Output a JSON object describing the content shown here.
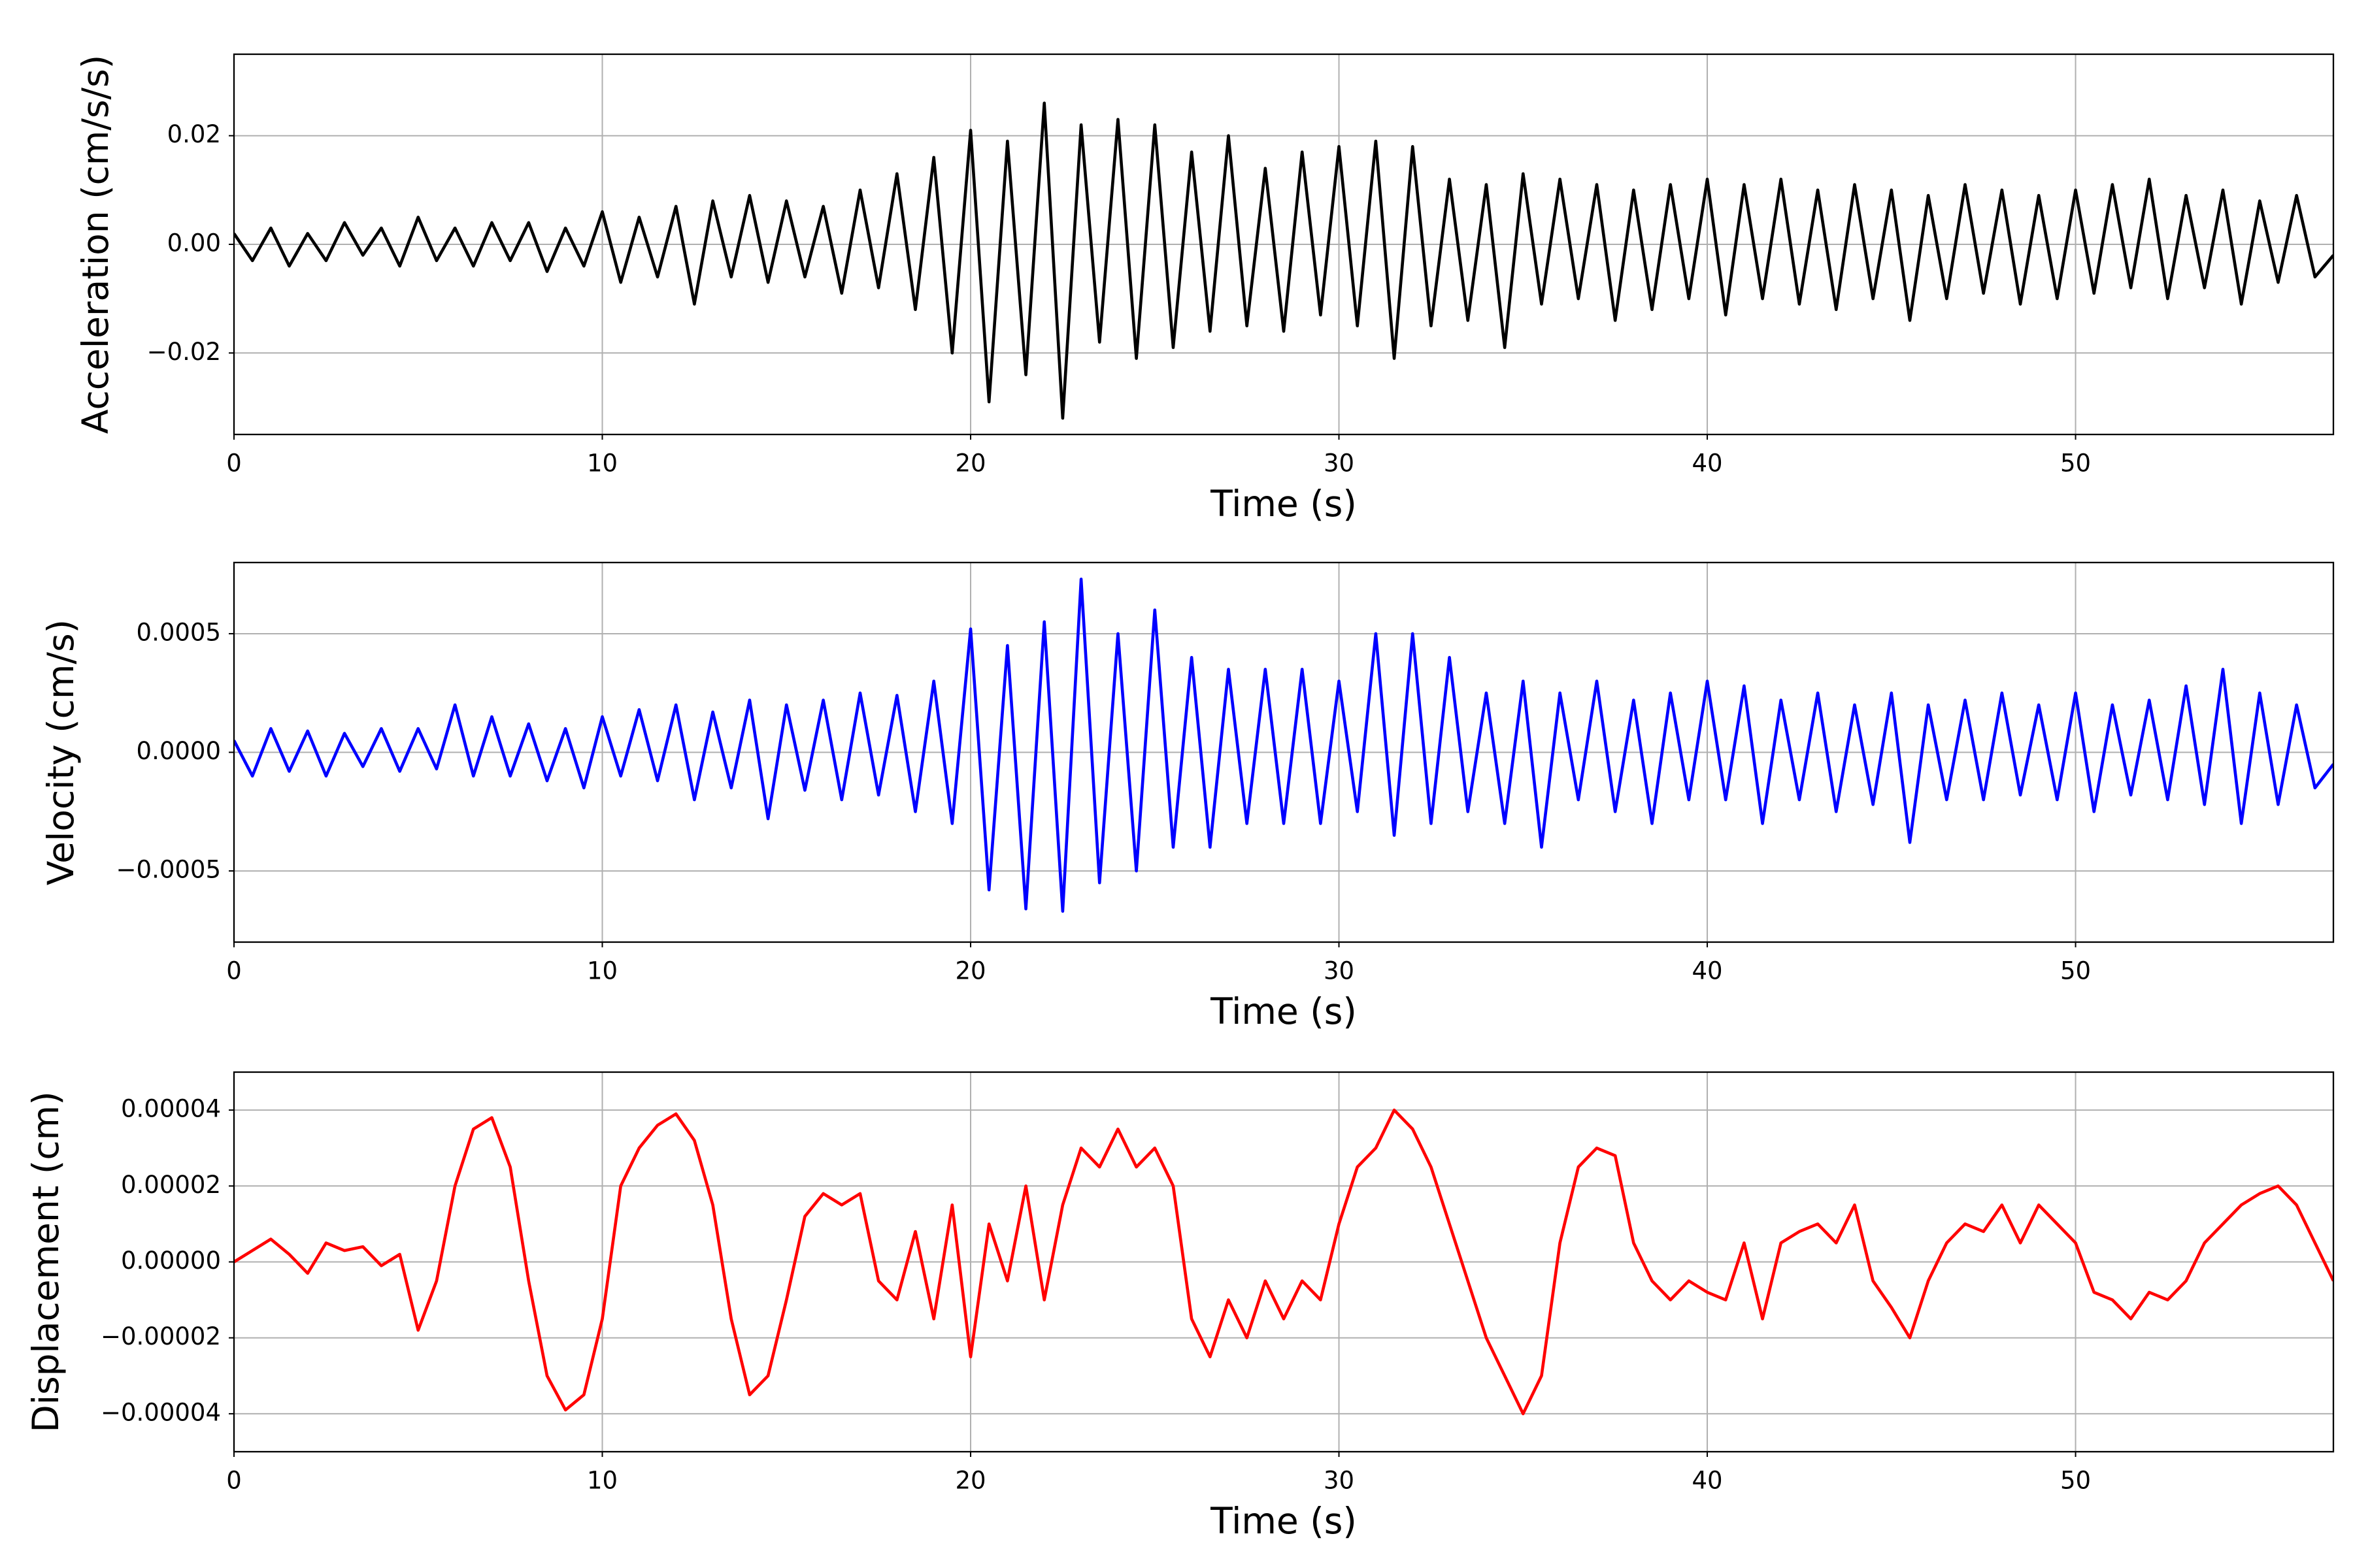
{
  "chart_data": [
    {
      "type": "line",
      "xlabel": "Time (s)",
      "ylabel": "Acceleration (cm/s/s)",
      "color": "#000000",
      "grid": true,
      "xlim": [
        0,
        57
      ],
      "xticks": [
        0,
        10,
        20,
        30,
        40,
        50
      ],
      "ylim": [
        -0.035,
        0.035
      ],
      "yticks": [
        {
          "value": -0.02,
          "label": "−0.02"
        },
        {
          "value": 0,
          "label": "0.00"
        },
        {
          "value": 0.02,
          "label": "0.02"
        }
      ],
      "x": [
        0,
        0.5,
        1,
        1.5,
        2,
        2.5,
        3,
        3.5,
        4,
        4.5,
        5,
        5.5,
        6,
        6.5,
        7,
        7.5,
        8,
        8.5,
        9,
        9.5,
        10,
        10.5,
        11,
        11.5,
        12,
        12.5,
        13,
        13.5,
        14,
        14.5,
        15,
        15.5,
        16,
        16.5,
        17,
        17.5,
        18,
        18.5,
        19,
        19.5,
        20,
        20.5,
        21,
        21.5,
        22,
        22.5,
        23,
        23.5,
        24,
        24.5,
        25,
        25.5,
        26,
        26.5,
        27,
        27.5,
        28,
        28.5,
        29,
        29.5,
        30,
        30.5,
        31,
        31.5,
        32,
        32.5,
        33,
        33.5,
        34,
        34.5,
        35,
        35.5,
        36,
        36.5,
        37,
        37.5,
        38,
        38.5,
        39,
        39.5,
        40,
        40.5,
        41,
        41.5,
        42,
        42.5,
        43,
        43.5,
        44,
        44.5,
        45,
        45.5,
        46,
        46.5,
        47,
        47.5,
        48,
        48.5,
        49,
        49.5,
        50,
        50.5,
        51,
        51.5,
        52,
        52.5,
        53,
        53.5,
        54,
        54.5,
        55,
        55.5,
        56,
        56.5,
        57
      ],
      "values": [
        0.002,
        -0.003,
        0.003,
        -0.004,
        0.002,
        -0.003,
        0.004,
        -0.002,
        0.003,
        -0.004,
        0.005,
        -0.003,
        0.003,
        -0.004,
        0.004,
        -0.003,
        0.004,
        -0.005,
        0.003,
        -0.004,
        0.006,
        -0.007,
        0.005,
        -0.006,
        0.007,
        -0.011,
        0.008,
        -0.006,
        0.009,
        -0.007,
        0.008,
        -0.006,
        0.007,
        -0.009,
        0.01,
        -0.008,
        0.013,
        -0.012,
        0.016,
        -0.02,
        0.021,
        -0.029,
        0.019,
        -0.024,
        0.026,
        -0.032,
        0.022,
        -0.018,
        0.023,
        -0.021,
        0.022,
        -0.019,
        0.017,
        -0.016,
        0.02,
        -0.015,
        0.014,
        -0.016,
        0.017,
        -0.013,
        0.018,
        -0.015,
        0.019,
        -0.021,
        0.018,
        -0.015,
        0.012,
        -0.014,
        0.011,
        -0.019,
        0.013,
        -0.011,
        0.012,
        -0.01,
        0.011,
        -0.014,
        0.01,
        -0.012,
        0.011,
        -0.01,
        0.012,
        -0.013,
        0.011,
        -0.01,
        0.012,
        -0.011,
        0.01,
        -0.012,
        0.011,
        -0.01,
        0.01,
        -0.014,
        0.009,
        -0.01,
        0.011,
        -0.009,
        0.01,
        -0.011,
        0.009,
        -0.01,
        0.01,
        -0.009,
        0.011,
        -0.008,
        0.012,
        -0.01,
        0.009,
        -0.008,
        0.01,
        -0.011,
        0.008,
        -0.007,
        0.009,
        -0.006,
        -0.002
      ]
    },
    {
      "type": "line",
      "xlabel": "Time (s)",
      "ylabel": "Velocity (cm/s)",
      "color": "#0000ff",
      "grid": true,
      "xlim": [
        0,
        57
      ],
      "xticks": [
        0,
        10,
        20,
        30,
        40,
        50
      ],
      "ylim": [
        -0.0008,
        0.0008
      ],
      "yticks": [
        {
          "value": -0.0005,
          "label": "−0.0005"
        },
        {
          "value": 0,
          "label": "0.0000"
        },
        {
          "value": 0.0005,
          "label": "0.0005"
        }
      ],
      "x": [
        0,
        0.5,
        1,
        1.5,
        2,
        2.5,
        3,
        3.5,
        4,
        4.5,
        5,
        5.5,
        6,
        6.5,
        7,
        7.5,
        8,
        8.5,
        9,
        9.5,
        10,
        10.5,
        11,
        11.5,
        12,
        12.5,
        13,
        13.5,
        14,
        14.5,
        15,
        15.5,
        16,
        16.5,
        17,
        17.5,
        18,
        18.5,
        19,
        19.5,
        20,
        20.5,
        21,
        21.5,
        22,
        22.5,
        23,
        23.5,
        24,
        24.5,
        25,
        25.5,
        26,
        26.5,
        27,
        27.5,
        28,
        28.5,
        29,
        29.5,
        30,
        30.5,
        31,
        31.5,
        32,
        32.5,
        33,
        33.5,
        34,
        34.5,
        35,
        35.5,
        36,
        36.5,
        37,
        37.5,
        38,
        38.5,
        39,
        39.5,
        40,
        40.5,
        41,
        41.5,
        42,
        42.5,
        43,
        43.5,
        44,
        44.5,
        45,
        45.5,
        46,
        46.5,
        47,
        47.5,
        48,
        48.5,
        49,
        49.5,
        50,
        50.5,
        51,
        51.5,
        52,
        52.5,
        53,
        53.5,
        54,
        54.5,
        55,
        55.5,
        56,
        56.5,
        57
      ],
      "values": [
        5e-05,
        -0.0001,
        0.0001,
        -8e-05,
        9e-05,
        -0.0001,
        8e-05,
        -6e-05,
        0.0001,
        -8e-05,
        0.0001,
        -7e-05,
        0.0002,
        -0.0001,
        0.00015,
        -0.0001,
        0.00012,
        -0.00012,
        0.0001,
        -0.00015,
        0.00015,
        -0.0001,
        0.00018,
        -0.00012,
        0.0002,
        -0.0002,
        0.00017,
        -0.00015,
        0.00022,
        -0.00028,
        0.0002,
        -0.00016,
        0.00022,
        -0.0002,
        0.00025,
        -0.00018,
        0.00024,
        -0.00025,
        0.0003,
        -0.0003,
        0.00052,
        -0.00058,
        0.00045,
        -0.00066,
        0.00055,
        -0.00067,
        0.00073,
        -0.00055,
        0.0005,
        -0.0005,
        0.0006,
        -0.0004,
        0.0004,
        -0.0004,
        0.00035,
        -0.0003,
        0.00035,
        -0.0003,
        0.00035,
        -0.0003,
        0.0003,
        -0.00025,
        0.0005,
        -0.00035,
        0.0005,
        -0.0003,
        0.0004,
        -0.00025,
        0.00025,
        -0.0003,
        0.0003,
        -0.0004,
        0.00025,
        -0.0002,
        0.0003,
        -0.00025,
        0.00022,
        -0.0003,
        0.00025,
        -0.0002,
        0.0003,
        -0.0002,
        0.00028,
        -0.0003,
        0.00022,
        -0.0002,
        0.00025,
        -0.00025,
        0.0002,
        -0.00022,
        0.00025,
        -0.00038,
        0.0002,
        -0.0002,
        0.00022,
        -0.0002,
        0.00025,
        -0.00018,
        0.0002,
        -0.0002,
        0.00025,
        -0.00025,
        0.0002,
        -0.00018,
        0.00022,
        -0.0002,
        0.00028,
        -0.00022,
        0.00035,
        -0.0003,
        0.00025,
        -0.00022,
        0.0002,
        -0.00015,
        -5e-05
      ]
    },
    {
      "type": "line",
      "xlabel": "Time (s)",
      "ylabel": "Displacement (cm)",
      "color": "#ff0000",
      "grid": true,
      "xlim": [
        0,
        57
      ],
      "xticks": [
        0,
        10,
        20,
        30,
        40,
        50
      ],
      "ylim": [
        -5e-05,
        5e-05
      ],
      "yticks": [
        {
          "value": -4e-05,
          "label": "−0.00004"
        },
        {
          "value": -2e-05,
          "label": "−0.00002"
        },
        {
          "value": 0,
          "label": "0.00000"
        },
        {
          "value": 2e-05,
          "label": "0.00002"
        },
        {
          "value": 4e-05,
          "label": "0.00004"
        }
      ],
      "x": [
        0,
        0.5,
        1,
        1.5,
        2,
        2.5,
        3,
        3.5,
        4,
        4.5,
        5,
        5.5,
        6,
        6.5,
        7,
        7.5,
        8,
        8.5,
        9,
        9.5,
        10,
        10.5,
        11,
        11.5,
        12,
        12.5,
        13,
        13.5,
        14,
        14.5,
        15,
        15.5,
        16,
        16.5,
        17,
        17.5,
        18,
        18.5,
        19,
        19.5,
        20,
        20.5,
        21,
        21.5,
        22,
        22.5,
        23,
        23.5,
        24,
        24.5,
        25,
        25.5,
        26,
        26.5,
        27,
        27.5,
        28,
        28.5,
        29,
        29.5,
        30,
        30.5,
        31,
        31.5,
        32,
        32.5,
        33,
        33.5,
        34,
        34.5,
        35,
        35.5,
        36,
        36.5,
        37,
        37.5,
        38,
        38.5,
        39,
        39.5,
        40,
        40.5,
        41,
        41.5,
        42,
        42.5,
        43,
        43.5,
        44,
        44.5,
        45,
        45.5,
        46,
        46.5,
        47,
        47.5,
        48,
        48.5,
        49,
        49.5,
        50,
        50.5,
        51,
        51.5,
        52,
        52.5,
        53,
        53.5,
        54,
        54.5,
        55,
        55.5,
        56,
        56.5,
        57
      ],
      "values": [
        0,
        3e-06,
        6e-06,
        2e-06,
        -3e-06,
        5e-06,
        3e-06,
        4e-06,
        -1e-06,
        2e-06,
        -1.8e-05,
        -5e-06,
        2e-05,
        3.5e-05,
        3.8e-05,
        2.5e-05,
        -5e-06,
        -3e-05,
        -3.9e-05,
        -3.5e-05,
        -1.5e-05,
        2e-05,
        3e-05,
        3.6e-05,
        3.9e-05,
        3.2e-05,
        1.5e-05,
        -1.5e-05,
        -3.5e-05,
        -3e-05,
        -1e-05,
        1.2e-05,
        1.8e-05,
        1.5e-05,
        1.8e-05,
        -5e-06,
        -1e-05,
        8e-06,
        -1.5e-05,
        1.5e-05,
        -2.5e-05,
        1e-05,
        -5e-06,
        2e-05,
        -1e-05,
        1.5e-05,
        3e-05,
        2.5e-05,
        3.5e-05,
        2.5e-05,
        3e-05,
        2e-05,
        -1.5e-05,
        -2.5e-05,
        -1e-05,
        -2e-05,
        -5e-06,
        -1.5e-05,
        -5e-06,
        -1e-05,
        1e-05,
        2.5e-05,
        3e-05,
        4e-05,
        3.5e-05,
        2.5e-05,
        1e-05,
        -5e-06,
        -2e-05,
        -3e-05,
        -4e-05,
        -3e-05,
        5e-06,
        2.5e-05,
        3e-05,
        2.8e-05,
        5e-06,
        -5e-06,
        -1e-05,
        -5e-06,
        -8e-06,
        -1e-05,
        5e-06,
        -1.5e-05,
        5e-06,
        8e-06,
        1e-05,
        5e-06,
        1.5e-05,
        -5e-06,
        -1.2e-05,
        -2e-05,
        -5e-06,
        5e-06,
        1e-05,
        8e-06,
        1.5e-05,
        5e-06,
        1.5e-05,
        1e-05,
        5e-06,
        -8e-06,
        -1e-05,
        -1.5e-05,
        -8e-06,
        -1e-05,
        -5e-06,
        5e-06,
        1e-05,
        1.5e-05,
        1.8e-05,
        2e-05,
        1.5e-05,
        5e-06,
        -5e-06
      ]
    }
  ]
}
